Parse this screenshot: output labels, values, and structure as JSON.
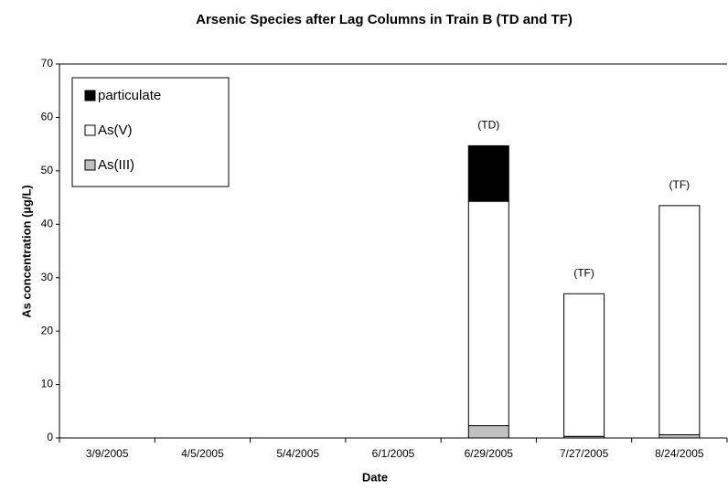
{
  "chart_data": {
    "type": "stacked_bar",
    "title": "Arsenic Species after Lag Columns in Train B (TD and TF)",
    "x_label": "Date",
    "y_label": "As concentration (µg/L)",
    "categories": [
      "3/9/2005",
      "4/5/2005",
      "5/4/2005",
      "6/1/2005",
      "6/29/2005",
      "7/27/2005",
      "8/24/2005"
    ],
    "series": [
      {
        "name": "As(III)",
        "color": "#c0c0c0",
        "values": [
          null,
          null,
          null,
          null,
          2.3,
          0.3,
          0.6
        ]
      },
      {
        "name": "As(V)",
        "color": "#ffffff",
        "values": [
          null,
          null,
          null,
          null,
          42,
          26.7,
          42.9
        ]
      },
      {
        "name": "particulate",
        "color": "#000000",
        "values": [
          null,
          null,
          null,
          null,
          10.4,
          0,
          0
        ]
      }
    ],
    "annotations": [
      null,
      null,
      null,
      null,
      "(TD)",
      "(TF)",
      "(TF)"
    ],
    "ylim": [
      0,
      70
    ],
    "yticks": [
      0,
      10,
      20,
      30,
      40,
      50,
      60,
      70
    ],
    "legend": "upper left"
  }
}
